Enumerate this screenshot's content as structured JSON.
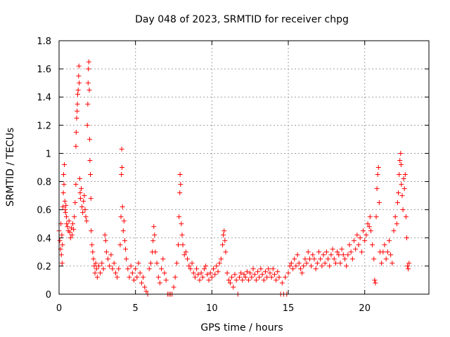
{
  "chart_data": {
    "type": "scatter",
    "title": "Day 048 of 2023, SRMTID for receiver chpg",
    "xlabel": "GPS time / hours",
    "ylabel": "SRMTID / TECUs",
    "xlim": [
      0,
      24.2
    ],
    "ylim": [
      0,
      1.8
    ],
    "x_ticks": [
      0,
      5,
      10,
      15,
      20
    ],
    "x_tick_labels": [
      "0",
      "5",
      "10",
      "15",
      "20"
    ],
    "y_ticks": [
      0,
      0.2,
      0.4,
      0.6,
      0.8,
      1.0,
      1.2,
      1.4,
      1.6,
      1.8
    ],
    "y_tick_labels": [
      "0",
      "0.2",
      "0.4",
      "0.6",
      "0.8",
      "1",
      "1.2",
      "1.4",
      "1.6",
      "1.8"
    ],
    "grid": true,
    "marker": "+",
    "marker_color": "#ff0000",
    "series": [
      {
        "name": "SRMTID",
        "points": [
          [
            0.0,
            0.45
          ],
          [
            0.05,
            0.38
          ],
          [
            0.1,
            0.32
          ],
          [
            0.12,
            0.5
          ],
          [
            0.15,
            0.28
          ],
          [
            0.18,
            0.42
          ],
          [
            0.2,
            0.22
          ],
          [
            0.22,
            0.35
          ],
          [
            0.25,
            0.62
          ],
          [
            0.28,
            0.72
          ],
          [
            0.3,
            0.85
          ],
          [
            0.32,
            0.78
          ],
          [
            0.35,
            0.92
          ],
          [
            0.38,
            0.66
          ],
          [
            0.4,
            0.6
          ],
          [
            0.42,
            0.58
          ],
          [
            0.45,
            0.63
          ],
          [
            0.48,
            0.55
          ],
          [
            0.5,
            0.5
          ],
          [
            0.55,
            0.48
          ],
          [
            0.6,
            0.45
          ],
          [
            0.65,
            0.52
          ],
          [
            0.7,
            0.44
          ],
          [
            0.75,
            0.4
          ],
          [
            0.8,
            0.47
          ],
          [
            0.85,
            0.42
          ],
          [
            0.9,
            0.5
          ],
          [
            0.95,
            0.46
          ],
          [
            1.0,
            0.55
          ],
          [
            1.05,
            0.65
          ],
          [
            1.1,
            0.78
          ],
          [
            1.1,
            1.05
          ],
          [
            1.12,
            1.15
          ],
          [
            1.15,
            1.25
          ],
          [
            1.18,
            1.3
          ],
          [
            1.2,
            1.35
          ],
          [
            1.22,
            1.42
          ],
          [
            1.25,
            1.45
          ],
          [
            1.28,
            1.55
          ],
          [
            1.3,
            1.62
          ],
          [
            1.32,
            1.5
          ],
          [
            1.35,
            0.82
          ],
          [
            1.38,
            0.72
          ],
          [
            1.4,
            0.68
          ],
          [
            1.45,
            0.75
          ],
          [
            1.5,
            0.62
          ],
          [
            1.55,
            0.58
          ],
          [
            1.6,
            0.66
          ],
          [
            1.65,
            0.7
          ],
          [
            1.7,
            0.6
          ],
          [
            1.75,
            0.55
          ],
          [
            1.8,
            0.52
          ],
          [
            1.85,
            1.2
          ],
          [
            1.88,
            1.35
          ],
          [
            1.9,
            1.5
          ],
          [
            1.92,
            1.6
          ],
          [
            1.95,
            1.65
          ],
          [
            1.98,
            1.45
          ],
          [
            2.0,
            1.1
          ],
          [
            2.02,
            0.95
          ],
          [
            2.05,
            0.85
          ],
          [
            2.08,
            0.68
          ],
          [
            2.1,
            0.45
          ],
          [
            2.15,
            0.35
          ],
          [
            2.2,
            0.3
          ],
          [
            2.25,
            0.25
          ],
          [
            2.3,
            0.2
          ],
          [
            2.35,
            0.15
          ],
          [
            2.4,
            0.22
          ],
          [
            2.45,
            0.18
          ],
          [
            2.5,
            0.12
          ],
          [
            2.6,
            0.2
          ],
          [
            2.7,
            0.15
          ],
          [
            2.8,
            0.22
          ],
          [
            2.9,
            0.18
          ],
          [
            3.0,
            0.42
          ],
          [
            3.05,
            0.38
          ],
          [
            3.1,
            0.3
          ],
          [
            3.2,
            0.25
          ],
          [
            3.3,
            0.2
          ],
          [
            3.4,
            0.28
          ],
          [
            3.5,
            0.18
          ],
          [
            3.6,
            0.22
          ],
          [
            3.7,
            0.15
          ],
          [
            3.8,
            0.12
          ],
          [
            3.9,
            0.18
          ],
          [
            4.0,
            0.35
          ],
          [
            4.05,
            0.55
          ],
          [
            4.08,
            0.85
          ],
          [
            4.1,
            1.03
          ],
          [
            4.12,
            0.9
          ],
          [
            4.15,
            0.62
          ],
          [
            4.2,
            0.45
          ],
          [
            4.25,
            0.52
          ],
          [
            4.3,
            0.38
          ],
          [
            4.35,
            0.32
          ],
          [
            4.4,
            0.25
          ],
          [
            4.5,
            0.18
          ],
          [
            4.6,
            0.12
          ],
          [
            4.7,
            0.2
          ],
          [
            4.8,
            0.15
          ],
          [
            4.9,
            0.1
          ],
          [
            5.0,
            0.18
          ],
          [
            5.1,
            0.12
          ],
          [
            5.2,
            0.22
          ],
          [
            5.3,
            0.15
          ],
          [
            5.4,
            0.08
          ],
          [
            5.5,
            0.12
          ],
          [
            5.6,
            0.05
          ],
          [
            5.7,
            0.02
          ],
          [
            5.8,
            0.0
          ],
          [
            5.9,
            0.18
          ],
          [
            6.0,
            0.22
          ],
          [
            6.1,
            0.3
          ],
          [
            6.15,
            0.38
          ],
          [
            6.2,
            0.48
          ],
          [
            6.25,
            0.42
          ],
          [
            6.3,
            0.3
          ],
          [
            6.4,
            0.22
          ],
          [
            6.5,
            0.12
          ],
          [
            6.6,
            0.08
          ],
          [
            6.7,
            0.18
          ],
          [
            6.8,
            0.25
          ],
          [
            6.9,
            0.15
          ],
          [
            7.0,
            0.1
          ],
          [
            7.1,
            0.0
          ],
          [
            7.2,
            0.0
          ],
          [
            7.3,
            0.0
          ],
          [
            7.4,
            0.0
          ],
          [
            7.5,
            0.05
          ],
          [
            7.6,
            0.12
          ],
          [
            7.7,
            0.22
          ],
          [
            7.8,
            0.35
          ],
          [
            7.85,
            0.55
          ],
          [
            7.9,
            0.72
          ],
          [
            7.92,
            0.85
          ],
          [
            7.95,
            0.78
          ],
          [
            8.0,
            0.5
          ],
          [
            8.05,
            0.42
          ],
          [
            8.1,
            0.35
          ],
          [
            8.2,
            0.28
          ],
          [
            8.3,
            0.3
          ],
          [
            8.4,
            0.25
          ],
          [
            8.5,
            0.2
          ],
          [
            8.6,
            0.18
          ],
          [
            8.7,
            0.22
          ],
          [
            8.8,
            0.15
          ],
          [
            8.9,
            0.12
          ],
          [
            9.0,
            0.18
          ],
          [
            9.1,
            0.14
          ],
          [
            9.2,
            0.1
          ],
          [
            9.3,
            0.15
          ],
          [
            9.4,
            0.12
          ],
          [
            9.5,
            0.18
          ],
          [
            9.6,
            0.2
          ],
          [
            9.7,
            0.14
          ],
          [
            9.8,
            0.1
          ],
          [
            9.9,
            0.15
          ],
          [
            10.0,
            0.12
          ],
          [
            10.1,
            0.18
          ],
          [
            10.2,
            0.14
          ],
          [
            10.3,
            0.2
          ],
          [
            10.4,
            0.16
          ],
          [
            10.5,
            0.22
          ],
          [
            10.6,
            0.25
          ],
          [
            10.7,
            0.35
          ],
          [
            10.75,
            0.42
          ],
          [
            10.8,
            0.45
          ],
          [
            10.85,
            0.38
          ],
          [
            10.9,
            0.3
          ],
          [
            11.0,
            0.15
          ],
          [
            11.1,
            0.1
          ],
          [
            11.2,
            0.08
          ],
          [
            11.3,
            0.12
          ],
          [
            11.4,
            0.05
          ],
          [
            11.5,
            0.14
          ],
          [
            11.6,
            0.1
          ],
          [
            11.7,
            0.0
          ],
          [
            11.8,
            0.12
          ],
          [
            11.9,
            0.15
          ],
          [
            12.0,
            0.1
          ],
          [
            12.1,
            0.14
          ],
          [
            12.2,
            0.12
          ],
          [
            12.3,
            0.16
          ],
          [
            12.4,
            0.1
          ],
          [
            12.5,
            0.15
          ],
          [
            12.6,
            0.12
          ],
          [
            12.7,
            0.18
          ],
          [
            12.8,
            0.14
          ],
          [
            12.9,
            0.1
          ],
          [
            13.0,
            0.16
          ],
          [
            13.1,
            0.12
          ],
          [
            13.2,
            0.18
          ],
          [
            13.3,
            0.14
          ],
          [
            13.4,
            0.1
          ],
          [
            13.5,
            0.16
          ],
          [
            13.6,
            0.12
          ],
          [
            13.7,
            0.18
          ],
          [
            13.8,
            0.15
          ],
          [
            13.9,
            0.12
          ],
          [
            14.0,
            0.18
          ],
          [
            14.1,
            0.14
          ],
          [
            14.2,
            0.1
          ],
          [
            14.3,
            0.16
          ],
          [
            14.4,
            0.12
          ],
          [
            14.5,
            0.0
          ],
          [
            14.6,
            0.08
          ],
          [
            14.7,
            0.0
          ],
          [
            14.8,
            0.12
          ],
          [
            14.9,
            0.0
          ],
          [
            15.0,
            0.15
          ],
          [
            15.1,
            0.2
          ],
          [
            15.2,
            0.22
          ],
          [
            15.3,
            0.18
          ],
          [
            15.4,
            0.25
          ],
          [
            15.5,
            0.2
          ],
          [
            15.6,
            0.28
          ],
          [
            15.7,
            0.22
          ],
          [
            15.8,
            0.18
          ],
          [
            15.9,
            0.15
          ],
          [
            16.0,
            0.2
          ],
          [
            16.1,
            0.25
          ],
          [
            16.2,
            0.22
          ],
          [
            16.3,
            0.3
          ],
          [
            16.4,
            0.25
          ],
          [
            16.5,
            0.2
          ],
          [
            16.6,
            0.28
          ],
          [
            16.7,
            0.25
          ],
          [
            16.8,
            0.18
          ],
          [
            16.9,
            0.22
          ],
          [
            17.0,
            0.3
          ],
          [
            17.1,
            0.25
          ],
          [
            17.2,
            0.2
          ],
          [
            17.3,
            0.28
          ],
          [
            17.4,
            0.22
          ],
          [
            17.5,
            0.3
          ],
          [
            17.6,
            0.25
          ],
          [
            17.7,
            0.2
          ],
          [
            17.8,
            0.28
          ],
          [
            17.9,
            0.32
          ],
          [
            18.0,
            0.25
          ],
          [
            18.1,
            0.22
          ],
          [
            18.2,
            0.3
          ],
          [
            18.3,
            0.28
          ],
          [
            18.4,
            0.22
          ],
          [
            18.5,
            0.32
          ],
          [
            18.6,
            0.28
          ],
          [
            18.7,
            0.25
          ],
          [
            18.8,
            0.2
          ],
          [
            18.9,
            0.28
          ],
          [
            19.0,
            0.35
          ],
          [
            19.1,
            0.3
          ],
          [
            19.2,
            0.25
          ],
          [
            19.3,
            0.38
          ],
          [
            19.4,
            0.32
          ],
          [
            19.5,
            0.42
          ],
          [
            19.6,
            0.35
          ],
          [
            19.7,
            0.4
          ],
          [
            19.8,
            0.3
          ],
          [
            19.9,
            0.45
          ],
          [
            20.0,
            0.38
          ],
          [
            20.1,
            0.42
          ],
          [
            20.2,
            0.5
          ],
          [
            20.3,
            0.48
          ],
          [
            20.35,
            0.55
          ],
          [
            20.4,
            0.45
          ],
          [
            20.5,
            0.35
          ],
          [
            20.6,
            0.25
          ],
          [
            20.65,
            0.1
          ],
          [
            20.7,
            0.08
          ],
          [
            20.75,
            0.55
          ],
          [
            20.8,
            0.75
          ],
          [
            20.85,
            0.85
          ],
          [
            20.9,
            0.9
          ],
          [
            20.95,
            0.65
          ],
          [
            21.0,
            0.3
          ],
          [
            21.1,
            0.22
          ],
          [
            21.2,
            0.3
          ],
          [
            21.3,
            0.35
          ],
          [
            21.4,
            0.25
          ],
          [
            21.5,
            0.3
          ],
          [
            21.6,
            0.38
          ],
          [
            21.7,
            0.28
          ],
          [
            21.8,
            0.22
          ],
          [
            21.9,
            0.45
          ],
          [
            22.0,
            0.55
          ],
          [
            22.1,
            0.5
          ],
          [
            22.15,
            0.65
          ],
          [
            22.2,
            0.72
          ],
          [
            22.25,
            0.85
          ],
          [
            22.3,
            0.95
          ],
          [
            22.35,
            1.0
          ],
          [
            22.38,
            0.92
          ],
          [
            22.4,
            0.78
          ],
          [
            22.45,
            0.7
          ],
          [
            22.5,
            0.6
          ],
          [
            22.55,
            0.82
          ],
          [
            22.6,
            0.75
          ],
          [
            22.65,
            0.85
          ],
          [
            22.7,
            0.55
          ],
          [
            22.75,
            0.4
          ],
          [
            22.8,
            0.2
          ],
          [
            22.85,
            0.18
          ],
          [
            22.9,
            0.22
          ]
        ]
      }
    ]
  }
}
